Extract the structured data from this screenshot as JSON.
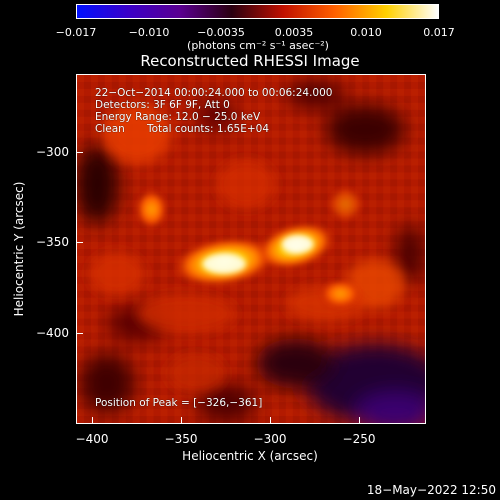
{
  "colorbar": {
    "tick_labels": [
      "−0.017",
      "−0.010",
      "−0.0035",
      "0.0035",
      "0.010",
      "0.017"
    ],
    "units": "(photons cm⁻² s⁻¹ asec⁻²)",
    "colors": [
      "#0010ff",
      "#3a00c8",
      "#5a0090",
      "#2a0010",
      "#c01000",
      "#ff6000",
      "#ffd000",
      "#ffffff"
    ]
  },
  "title": "Reconstructed RHESSI Image",
  "annotations": {
    "line1": "22−Oct−2014 00:00:24.000 to 00:06:24.000",
    "line2": "Detectors: 3F 6F 9F, Att 0",
    "line3": "Energy Range: 12.0 − 25.0 keV",
    "line4_a": "Clean",
    "line4_b": "Total counts: 1.65E+04",
    "peak": "Position of Peak = [−326,−361]"
  },
  "axes": {
    "xlabel": "Heliocentric X (arcsec)",
    "ylabel": "Heliocentric Y (arcsec)",
    "x_tick_labels": [
      "−400",
      "−350",
      "−300",
      "−250"
    ],
    "y_tick_labels": [
      "−300",
      "−350",
      "−400"
    ]
  },
  "timestamp": "18−May−2022 12:50"
}
